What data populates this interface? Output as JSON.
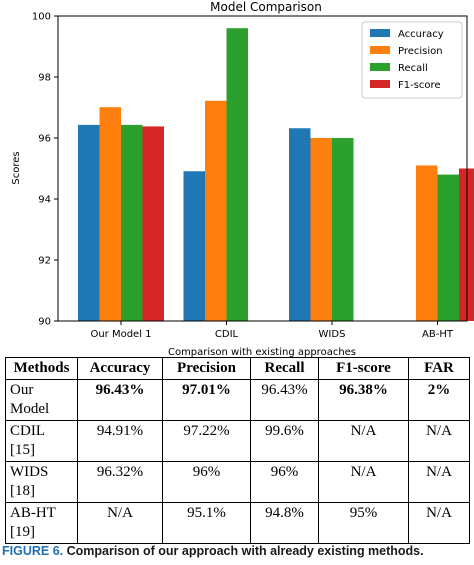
{
  "chart_data": {
    "type": "bar",
    "title": "Model Comparison",
    "xlabel": "Comparison with existing approaches",
    "ylabel": "Scores",
    "categories": [
      "Our Model 1",
      "CDIL",
      "WIDS",
      "AB-HT"
    ],
    "ylim": [
      90,
      100
    ],
    "yticks": [
      90,
      92,
      94,
      96,
      98,
      100
    ],
    "legend_position": "top-right",
    "grid": false,
    "series": [
      {
        "name": "Accuracy",
        "color": "#1f77b4",
        "values": [
          96.43,
          94.91,
          96.32,
          null
        ]
      },
      {
        "name": "Precision",
        "color": "#ff7f0e",
        "values": [
          97.01,
          97.22,
          96,
          95.1
        ]
      },
      {
        "name": "Recall",
        "color": "#2ca02c",
        "values": [
          96.43,
          99.6,
          96,
          94.8
        ]
      },
      {
        "name": "F1-score",
        "color": "#d62728",
        "values": [
          96.38,
          null,
          null,
          95
        ]
      }
    ]
  },
  "table": {
    "headers": [
      "Methods",
      "Accuracy",
      "Precision",
      "Recall",
      "F1-score",
      "FAR"
    ],
    "rows": [
      {
        "method": "Our Model",
        "cells": [
          "96.43%",
          "97.01%",
          "96.43%",
          "96.38%",
          "2%"
        ],
        "bold": [
          true,
          true,
          false,
          true,
          true
        ]
      },
      {
        "method": "CDIL [15]",
        "cells": [
          "94.91%",
          "97.22%",
          "99.6%",
          "N/A",
          "N/A"
        ],
        "bold": [
          false,
          false,
          false,
          false,
          false
        ]
      },
      {
        "method": "WIDS [18]",
        "cells": [
          "96.32%",
          "96%",
          "96%",
          "N/A",
          "N/A"
        ],
        "bold": [
          false,
          false,
          false,
          false,
          false
        ]
      },
      {
        "method": "AB-HT [19]",
        "cells": [
          "N/A",
          "95.1%",
          "94.8%",
          "95%",
          "N/A"
        ],
        "bold": [
          false,
          false,
          false,
          false,
          false
        ]
      }
    ]
  },
  "caption": {
    "label": "FIGURE 6.",
    "text": "Comparison of our approach with already existing methods."
  }
}
